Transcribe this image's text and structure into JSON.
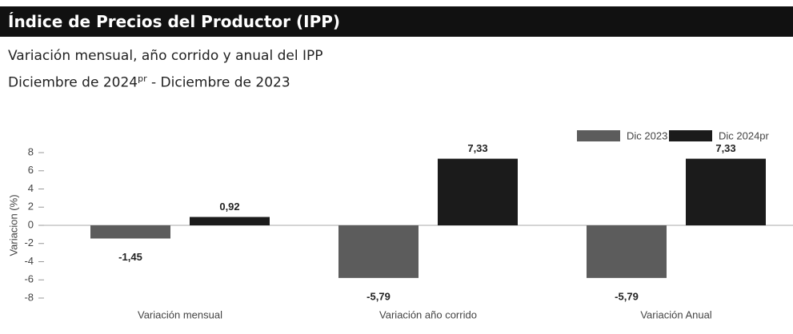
{
  "header": {
    "title": "Índice de Precios del Productor (IPP)",
    "subtitle": "Variación mensual, año corrido y anual del IPP",
    "period_start": "Diciembre de 2024",
    "period_mark": "pr",
    "period_end": "- Diciembre de 2023"
  },
  "chart_data": {
    "type": "bar",
    "categories": [
      "Variación mensual",
      "Variación año corrido",
      "Variación Anual"
    ],
    "series": [
      {
        "name": "Dic 2023",
        "color": "#5c5c5c",
        "values": [
          -1.45,
          -5.79,
          -5.79
        ],
        "value_labels": [
          "-1,45",
          "-5,79",
          "-5,79"
        ]
      },
      {
        "name": "Dic 2024pr",
        "color": "#1b1b1b",
        "values": [
          0.92,
          7.33,
          7.33
        ],
        "value_labels": [
          "0,92",
          "7,33",
          "7,33"
        ]
      }
    ],
    "ylabel": "Variacion (%)",
    "ylim": [
      -8,
      8
    ],
    "yticks": [
      -8,
      -6,
      -4,
      -2,
      0,
      2,
      4,
      6,
      8
    ],
    "legend": "top-right"
  }
}
